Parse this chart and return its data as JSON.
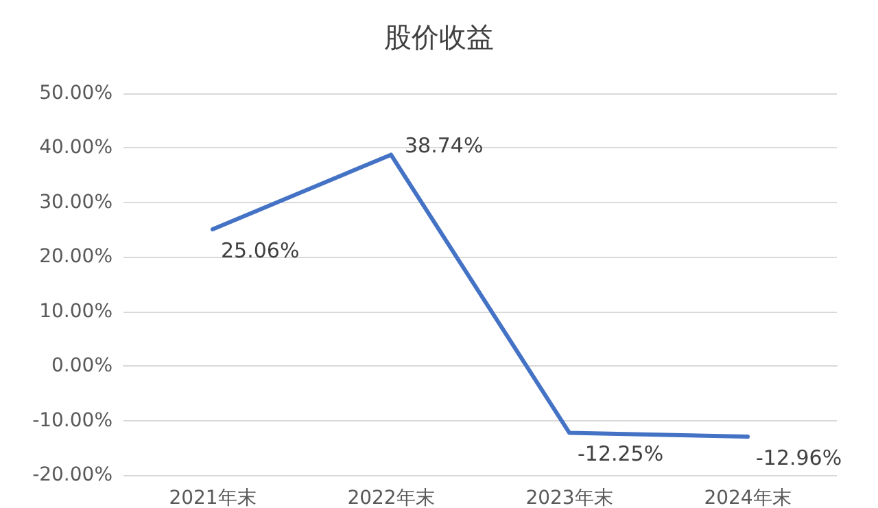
{
  "chart_data": {
    "type": "line",
    "title": "股价收益",
    "categories": [
      "2021年末",
      "2022年末",
      "2023年末",
      "2024年末"
    ],
    "values": [
      25.06,
      38.74,
      -12.25,
      -12.96
    ],
    "value_labels": [
      "25.06%",
      "38.74%",
      "-12.25%",
      "-12.96%"
    ],
    "color": "#4472c4",
    "ylim": [
      -20,
      50
    ],
    "yticks": [
      {
        "value": -20,
        "label": "-20.00%"
      },
      {
        "value": -10,
        "label": "-10.00%"
      },
      {
        "value": 0,
        "label": "0.00%"
      },
      {
        "value": 10,
        "label": "10.00%"
      },
      {
        "value": 20,
        "label": "20.00%"
      },
      {
        "value": 30,
        "label": "30.00%"
      },
      {
        "value": 40,
        "label": "40.00%"
      },
      {
        "value": 50,
        "label": "50.00%"
      }
    ],
    "grid": "y",
    "marker": "none",
    "line_style": "solid"
  }
}
